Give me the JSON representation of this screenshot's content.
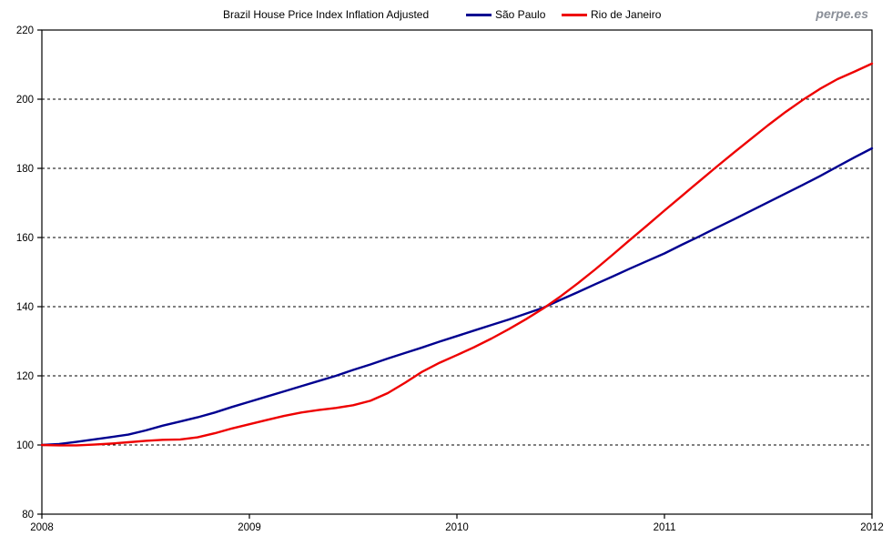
{
  "header": {
    "title": "Brazil House Price Index Inflation Adjusted",
    "watermark": "perpe.es"
  },
  "chart_data": {
    "type": "line",
    "title": "Brazil House Price Index Inflation Adjusted",
    "x_unit": "monthly points from Jan 2008 to Jan 2012",
    "x_tick_labels": [
      "2008",
      "2009",
      "2010",
      "2011",
      "2012"
    ],
    "y_ticks": [
      80,
      100,
      120,
      140,
      160,
      180,
      200,
      220
    ],
    "ylim": [
      80,
      220
    ],
    "grid": "horizontal dashed black lines at every 20 units (100-200)",
    "legend_position": "top, beside title",
    "series": [
      {
        "name": "São Paulo",
        "color": "#000090",
        "values": [
          100,
          100.3,
          100.9,
          101.6,
          102.3,
          103,
          104.2,
          105.6,
          106.8,
          108,
          109.4,
          111,
          112.5,
          114,
          115.5,
          117,
          118.5,
          120,
          121.7,
          123.3,
          125,
          126.6,
          128.2,
          129.9,
          131.5,
          133.1,
          134.7,
          136.3,
          138,
          139.7,
          142,
          144.2,
          146.5,
          148.7,
          151,
          153.2,
          155.4,
          157.9,
          160.3,
          162.8,
          165.2,
          167.7,
          170.2,
          172.7,
          175.2,
          177.8,
          180.5,
          183.2,
          185.8
        ]
      },
      {
        "name": "Rio de Janeiro",
        "color": "#ee0000",
        "values": [
          100,
          99.9,
          99.9,
          100.1,
          100.4,
          100.8,
          101.2,
          101.5,
          101.6,
          102.2,
          103.4,
          104.8,
          106,
          107.2,
          108.4,
          109.4,
          110.1,
          110.7,
          111.5,
          112.8,
          115,
          118,
          121.2,
          123.8,
          126,
          128.3,
          130.8,
          133.5,
          136.4,
          139.5,
          143,
          146.8,
          150.8,
          155,
          159.3,
          163.5,
          167.8,
          172,
          176.2,
          180.4,
          184.5,
          188.5,
          192.5,
          196.3,
          199.8,
          203,
          205.8,
          208,
          210.3
        ]
      }
    ]
  }
}
